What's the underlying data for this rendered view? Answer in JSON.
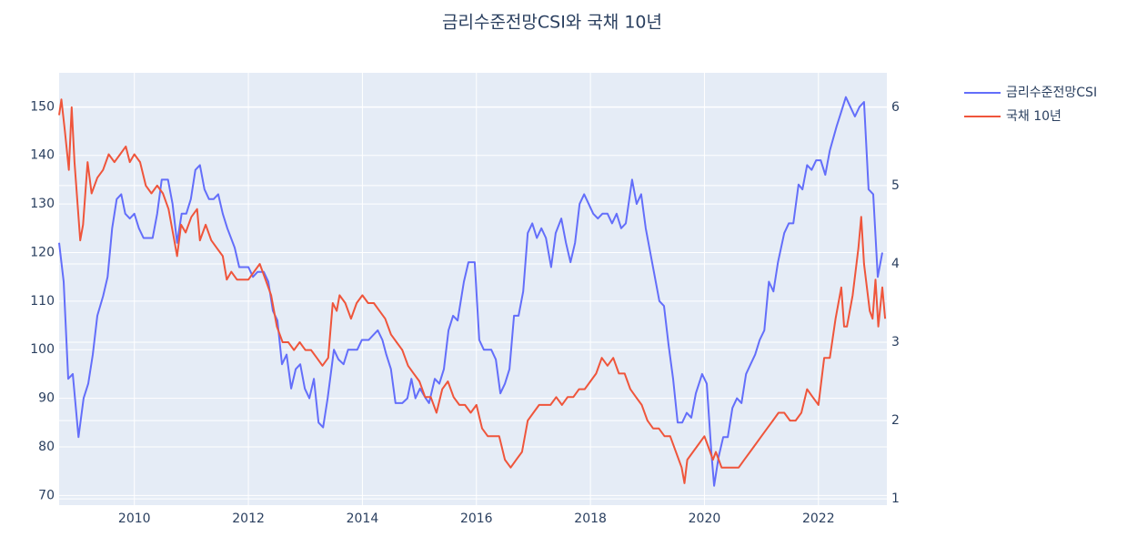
{
  "chart_data": {
    "type": "line",
    "title": "금리수준전망CSI와 국채 10년",
    "xlim": [
      2008.68,
      2023.2
    ],
    "xticks": [
      2010,
      2012,
      2014,
      2016,
      2018,
      2020,
      2022
    ],
    "ylim": [
      68,
      157
    ],
    "yticks": [
      70,
      80,
      90,
      100,
      110,
      120,
      130,
      140,
      150
    ],
    "y2lim": [
      0.92,
      6.44
    ],
    "y2ticks": [
      1,
      2,
      3,
      4,
      5,
      6
    ],
    "grid": true,
    "legend": "right",
    "series": [
      {
        "name": "금리수준전망CSI",
        "color": "#636efa",
        "x": [
          2008.68,
          2008.76,
          2008.84,
          2008.92,
          2009.02,
          2009.11,
          2009.19,
          2009.27,
          2009.35,
          2009.45,
          2009.53,
          2009.61,
          2009.69,
          2009.77,
          2009.84,
          2009.92,
          2010.0,
          2010.08,
          2010.16,
          2010.32,
          2010.4,
          2010.48,
          2010.59,
          2010.67,
          2010.75,
          2010.83,
          2010.91,
          2010.99,
          2011.07,
          2011.15,
          2011.23,
          2011.31,
          2011.39,
          2011.47,
          2011.55,
          2011.63,
          2011.76,
          2011.84,
          2012.0,
          2012.08,
          2012.16,
          2012.27,
          2012.35,
          2012.43,
          2012.51,
          2012.59,
          2012.67,
          2012.75,
          2012.83,
          2012.91,
          2012.99,
          2013.07,
          2013.15,
          2013.23,
          2013.31,
          2013.39,
          2013.5,
          2013.58,
          2013.67,
          2013.75,
          2013.91,
          2013.99,
          2014.11,
          2014.19,
          2014.27,
          2014.35,
          2014.42,
          2014.5,
          2014.58,
          2014.7,
          2014.79,
          2014.86,
          2014.93,
          2015.01,
          2015.11,
          2015.17,
          2015.27,
          2015.35,
          2015.43,
          2015.51,
          2015.59,
          2015.67,
          2015.78,
          2015.86,
          2015.97,
          2016.05,
          2016.13,
          2016.26,
          2016.34,
          2016.42,
          2016.5,
          2016.58,
          2016.66,
          2016.74,
          2016.82,
          2016.9,
          2016.98,
          2017.06,
          2017.14,
          2017.22,
          2017.31,
          2017.39,
          2017.49,
          2017.57,
          2017.65,
          2017.73,
          2017.81,
          2017.89,
          2017.97,
          2018.05,
          2018.13,
          2018.21,
          2018.3,
          2018.38,
          2018.46,
          2018.54,
          2018.62,
          2018.73,
          2018.81,
          2018.89,
          2018.97,
          2019.05,
          2019.13,
          2019.21,
          2019.29,
          2019.37,
          2019.45,
          2019.53,
          2019.61,
          2019.69,
          2019.77,
          2019.85,
          2019.96,
          2020.04,
          2020.12,
          2020.17,
          2020.25,
          2020.33,
          2020.41,
          2020.49,
          2020.57,
          2020.65,
          2020.73,
          2020.81,
          2020.89,
          2020.97,
          2021.05,
          2021.13,
          2021.21,
          2021.29,
          2021.4,
          2021.48,
          2021.56,
          2021.65,
          2021.72,
          2021.8,
          2021.88,
          2021.96,
          2022.04,
          2022.12,
          2022.2,
          2022.32,
          2022.4,
          2022.48,
          2022.56,
          2022.64,
          2022.72,
          2022.8,
          2022.88,
          2022.96,
          2023.04,
          2023.12
        ],
        "values": [
          122,
          114,
          94,
          95,
          82,
          90,
          93,
          99,
          107,
          111,
          115,
          125,
          131,
          132,
          128,
          127,
          128,
          125,
          123,
          123,
          128,
          135,
          135,
          130,
          122,
          128,
          128,
          131,
          137,
          138,
          133,
          131,
          131,
          132,
          128,
          125,
          121,
          117,
          117,
          115,
          116,
          116,
          114,
          108,
          106,
          97,
          99,
          92,
          96,
          97,
          92,
          90,
          94,
          85,
          84,
          90,
          100,
          98,
          97,
          100,
          100,
          102,
          102,
          103,
          104,
          102,
          99,
          96,
          89,
          89,
          90,
          94,
          90,
          92,
          90,
          89,
          94,
          93,
          96,
          104,
          107,
          106,
          114,
          118,
          118,
          102,
          100,
          100,
          98,
          91,
          93,
          96,
          107,
          107,
          112,
          124,
          126,
          123,
          125,
          123,
          117,
          124,
          127,
          122,
          118,
          122,
          130,
          132,
          130,
          128,
          127,
          128,
          128,
          126,
          128,
          125,
          126,
          135,
          130,
          132,
          125,
          120,
          115,
          110,
          109,
          101,
          94,
          85,
          85,
          87,
          86,
          91,
          95,
          93,
          79,
          72,
          78,
          82,
          82,
          88,
          90,
          89,
          95,
          97,
          99,
          102,
          104,
          114,
          112,
          118,
          124,
          126,
          126,
          134,
          133,
          138,
          137,
          139,
          139,
          136,
          141,
          146,
          149,
          152,
          150,
          148,
          150,
          151,
          133,
          132,
          115,
          120
        ]
      },
      {
        "name": "국채 10년",
        "color": "#ef553b",
        "axis": "y2",
        "x": [
          2008.68,
          2008.72,
          2008.78,
          2008.85,
          2008.9,
          2008.95,
          2009.05,
          2009.1,
          2009.18,
          2009.25,
          2009.35,
          2009.45,
          2009.55,
          2009.65,
          2009.75,
          2009.85,
          2009.92,
          2010.0,
          2010.1,
          2010.2,
          2010.3,
          2010.4,
          2010.5,
          2010.6,
          2010.7,
          2010.75,
          2010.82,
          2010.9,
          2011.0,
          2011.1,
          2011.15,
          2011.25,
          2011.35,
          2011.45,
          2011.55,
          2011.62,
          2011.7,
          2011.8,
          2011.9,
          2012.0,
          2012.1,
          2012.2,
          2012.3,
          2012.4,
          2012.5,
          2012.6,
          2012.7,
          2012.8,
          2012.9,
          2013.0,
          2013.1,
          2013.2,
          2013.3,
          2013.4,
          2013.48,
          2013.55,
          2013.6,
          2013.7,
          2013.8,
          2013.9,
          2014.0,
          2014.1,
          2014.2,
          2014.3,
          2014.4,
          2014.5,
          2014.6,
          2014.7,
          2014.8,
          2014.9,
          2015.0,
          2015.1,
          2015.2,
          2015.3,
          2015.4,
          2015.5,
          2015.6,
          2015.7,
          2015.8,
          2015.9,
          2016.0,
          2016.1,
          2016.2,
          2016.3,
          2016.4,
          2016.5,
          2016.6,
          2016.7,
          2016.8,
          2016.9,
          2017.0,
          2017.1,
          2017.2,
          2017.3,
          2017.4,
          2017.5,
          2017.6,
          2017.7,
          2017.8,
          2017.9,
          2018.0,
          2018.1,
          2018.2,
          2018.3,
          2018.4,
          2018.5,
          2018.6,
          2018.7,
          2018.8,
          2018.9,
          2019.0,
          2019.1,
          2019.2,
          2019.3,
          2019.4,
          2019.5,
          2019.6,
          2019.65,
          2019.7,
          2019.8,
          2019.9,
          2020.0,
          2020.05,
          2020.15,
          2020.2,
          2020.3,
          2020.4,
          2020.5,
          2020.6,
          2020.7,
          2020.8,
          2020.9,
          2021.0,
          2021.1,
          2021.2,
          2021.3,
          2021.4,
          2021.5,
          2021.6,
          2021.7,
          2021.8,
          2021.9,
          2022.0,
          2022.1,
          2022.2,
          2022.3,
          2022.4,
          2022.45,
          2022.5,
          2022.6,
          2022.7,
          2022.75,
          2022.8,
          2022.9,
          2022.95,
          2023.0,
          2023.05,
          2023.12,
          2023.17
        ],
        "values": [
          5.9,
          6.1,
          5.7,
          5.2,
          6.0,
          5.3,
          4.3,
          4.5,
          5.3,
          4.9,
          5.1,
          5.2,
          5.4,
          5.3,
          5.4,
          5.5,
          5.3,
          5.4,
          5.3,
          5.0,
          4.9,
          5.0,
          4.9,
          4.7,
          4.3,
          4.1,
          4.5,
          4.4,
          4.6,
          4.7,
          4.3,
          4.5,
          4.3,
          4.2,
          4.1,
          3.8,
          3.9,
          3.8,
          3.8,
          3.8,
          3.9,
          4.0,
          3.8,
          3.6,
          3.2,
          3.0,
          3.0,
          2.9,
          3.0,
          2.9,
          2.9,
          2.8,
          2.7,
          2.8,
          3.5,
          3.4,
          3.6,
          3.5,
          3.3,
          3.5,
          3.6,
          3.5,
          3.5,
          3.4,
          3.3,
          3.1,
          3.0,
          2.9,
          2.7,
          2.6,
          2.5,
          2.3,
          2.3,
          2.1,
          2.4,
          2.5,
          2.3,
          2.2,
          2.2,
          2.1,
          2.2,
          1.9,
          1.8,
          1.8,
          1.8,
          1.5,
          1.4,
          1.5,
          1.6,
          2.0,
          2.1,
          2.2,
          2.2,
          2.2,
          2.3,
          2.2,
          2.3,
          2.3,
          2.4,
          2.4,
          2.5,
          2.6,
          2.8,
          2.7,
          2.8,
          2.6,
          2.6,
          2.4,
          2.3,
          2.2,
          2.0,
          1.9,
          1.9,
          1.8,
          1.8,
          1.6,
          1.4,
          1.2,
          1.5,
          1.6,
          1.7,
          1.8,
          1.7,
          1.5,
          1.6,
          1.4,
          1.4,
          1.4,
          1.4,
          1.5,
          1.6,
          1.7,
          1.8,
          1.9,
          2.0,
          2.1,
          2.1,
          2.0,
          2.0,
          2.1,
          2.4,
          2.3,
          2.2,
          2.8,
          2.8,
          3.3,
          3.7,
          3.2,
          3.2,
          3.6,
          4.2,
          4.6,
          4.0,
          3.4,
          3.3,
          3.8,
          3.2,
          3.7,
          3.3
        ]
      }
    ]
  }
}
